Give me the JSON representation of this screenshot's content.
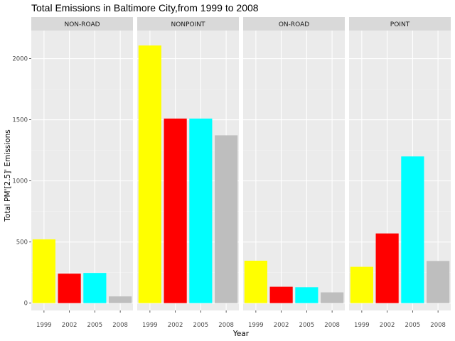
{
  "chart_data": {
    "type": "bar",
    "title": "Total Emissions in Baltimore City,from 1999 to 2008",
    "xlabel": "Year",
    "ylabel": "Total PM'[2.5]' Emissions",
    "categories": [
      "1999",
      "2002",
      "2005",
      "2008"
    ],
    "category_colors": [
      "#ffff00",
      "#ff0000",
      "#00ffff",
      "#bebebe"
    ],
    "yticks": [
      0,
      500,
      1000,
      1500,
      2000
    ],
    "ylim": [
      -60,
      2230
    ],
    "grid": true,
    "legend": "none",
    "panels": [
      {
        "name": "NON-ROAD",
        "values": [
          522,
          241,
          247,
          55
        ]
      },
      {
        "name": "NONPOINT",
        "values": [
          2108,
          1510,
          1510,
          1373
        ]
      },
      {
        "name": "ON-ROAD",
        "values": [
          347,
          134,
          130,
          88
        ]
      },
      {
        "name": "POINT",
        "values": [
          297,
          570,
          1200,
          345
        ]
      }
    ]
  },
  "colors": {
    "panel_background": "#ebebeb",
    "strip_background": "#d9d9d9",
    "grid_major": "#ffffff",
    "grid_minor": "#f2f2f2"
  }
}
